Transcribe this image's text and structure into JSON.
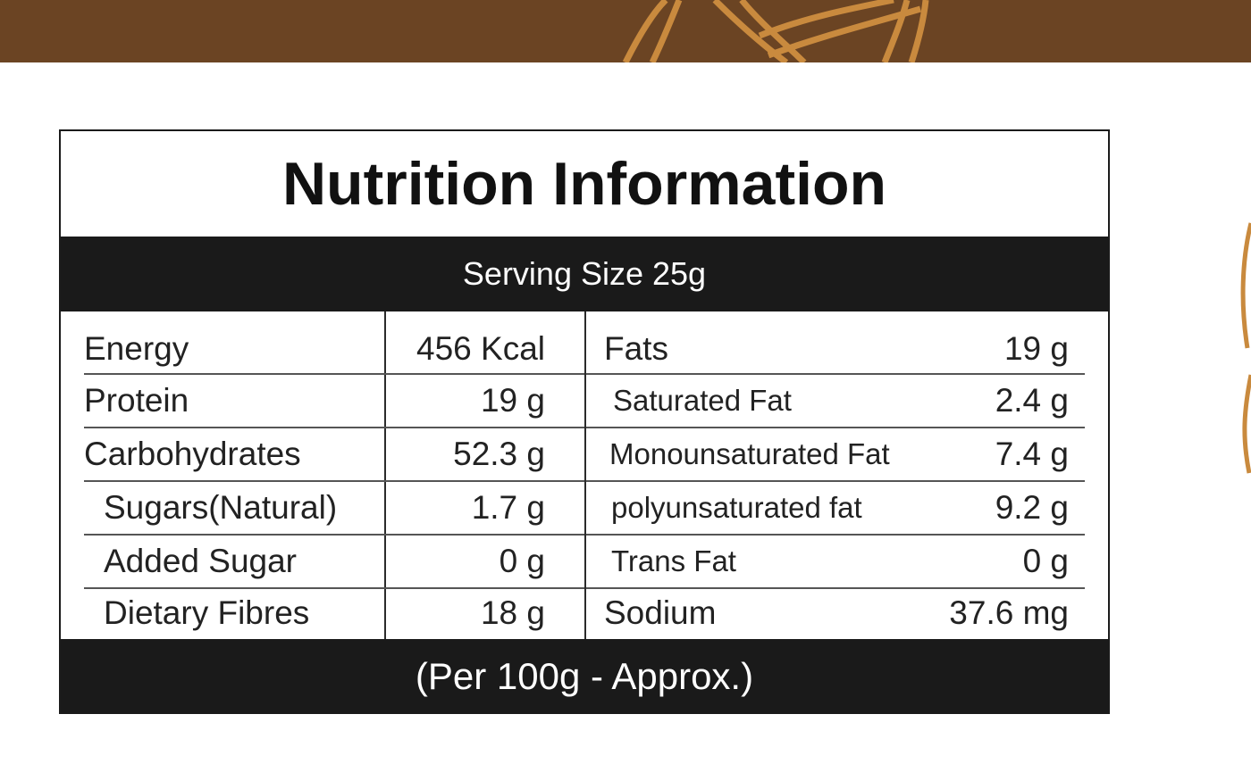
{
  "colors": {
    "band": "#6b4423",
    "pattern": "#c98a3e",
    "header_bg": "#1a1a1a",
    "border": "#1b1b1b"
  },
  "label": {
    "title": "Nutrition Information",
    "serving_size": "Serving Size 25g",
    "footer": "(Per 100g - Approx.)"
  },
  "left_rows": [
    {
      "name": "Energy",
      "value": "456 Kcal",
      "indent": false
    },
    {
      "name": "Protein",
      "value": "19 g",
      "indent": false
    },
    {
      "name": "Carbohydrates",
      "value": "52.3 g",
      "indent": false
    },
    {
      "name": "Sugars(Natural)",
      "value": "1.7 g",
      "indent": true
    },
    {
      "name": "Added Sugar",
      "value": "0 g",
      "indent": true
    },
    {
      "name": "Dietary Fibres",
      "value": "18 g",
      "indent": true
    }
  ],
  "right_rows": [
    {
      "name": "Fats",
      "value": "19 g",
      "indent": false
    },
    {
      "name": "Saturated Fat",
      "value": "2.4 g",
      "indent": true
    },
    {
      "name": "Monounsaturated Fat",
      "value": "7.4 g",
      "indent": true
    },
    {
      "name": "polyunsaturated fat",
      "value": "9.2 g",
      "indent": true
    },
    {
      "name": "Trans Fat",
      "value": "0 g",
      "indent": true
    },
    {
      "name": "Sodium",
      "value": "37.6 mg",
      "indent": false
    }
  ]
}
